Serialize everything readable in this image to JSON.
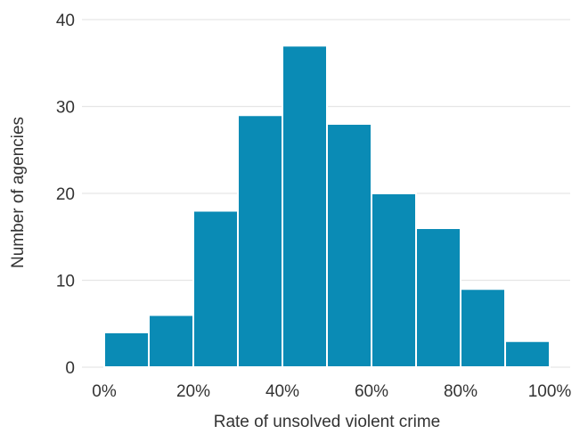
{
  "chart_data": {
    "type": "bar",
    "title": "",
    "xlabel": "Rate of unsolved violent crime",
    "ylabel": "Number of agencies",
    "bins": [
      {
        "start": 0,
        "end": 10,
        "value": 4
      },
      {
        "start": 10,
        "end": 20,
        "value": 6
      },
      {
        "start": 20,
        "end": 30,
        "value": 18
      },
      {
        "start": 30,
        "end": 40,
        "value": 29
      },
      {
        "start": 40,
        "end": 50,
        "value": 37
      },
      {
        "start": 50,
        "end": 60,
        "value": 28
      },
      {
        "start": 60,
        "end": 70,
        "value": 20
      },
      {
        "start": 70,
        "end": 80,
        "value": 16
      },
      {
        "start": 80,
        "end": 90,
        "value": 9
      },
      {
        "start": 90,
        "end": 100,
        "value": 3
      }
    ],
    "xlim": [
      0,
      100
    ],
    "ylim": [
      0,
      40
    ],
    "x_ticks": [
      "0%",
      "20%",
      "40%",
      "60%",
      "80%",
      "100%"
    ],
    "x_tick_values": [
      0,
      20,
      40,
      60,
      80,
      100
    ],
    "y_ticks": [
      "0",
      "10",
      "20",
      "30",
      "40"
    ],
    "y_tick_values": [
      0,
      10,
      20,
      30,
      40
    ],
    "grid": "horizontal",
    "bar_color": "#0a8bb5"
  }
}
